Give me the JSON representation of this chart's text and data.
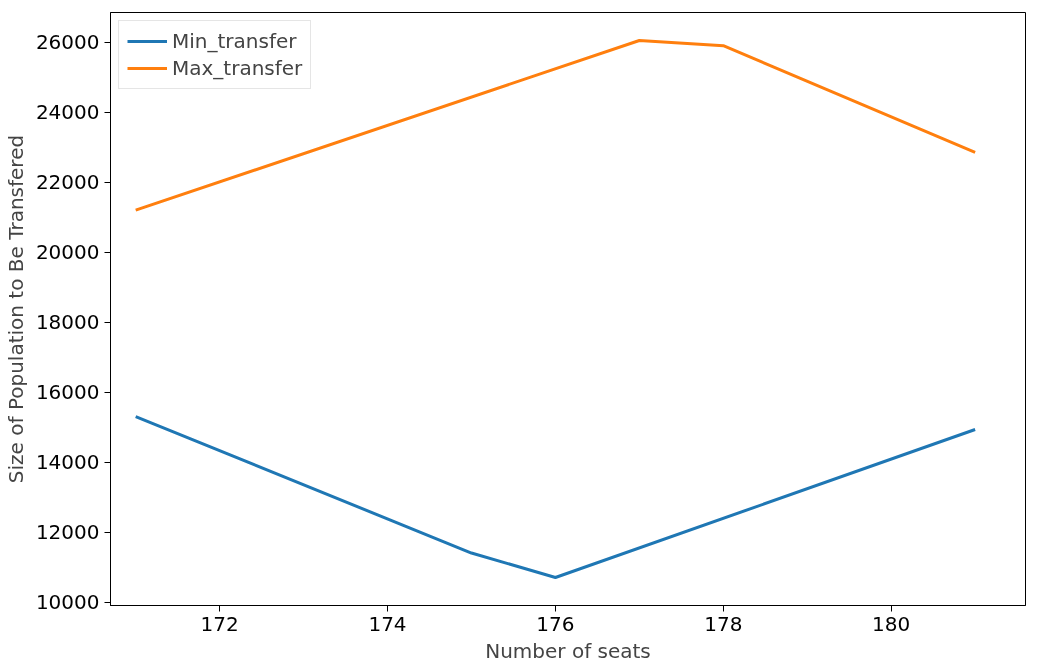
{
  "chart_data": {
    "type": "line",
    "xlabel": "Number of seats",
    "ylabel": "Size of Population to Be Transfered",
    "series": [
      {
        "name": "Min_transfer",
        "color": "#1f77b4",
        "x": [
          171,
          175,
          176,
          181
        ],
        "values": [
          15300,
          11400,
          10700,
          14930
        ]
      },
      {
        "name": "Max_transfer",
        "color": "#ff7f0e",
        "x": [
          171,
          177,
          178,
          181
        ],
        "values": [
          21200,
          26050,
          25900,
          22850
        ]
      }
    ],
    "xlim": [
      170.7,
      181.6
    ],
    "ylim": [
      9900,
      26850
    ],
    "xticks": [
      172,
      174,
      176,
      178,
      180
    ],
    "yticks": [
      10000,
      12000,
      14000,
      16000,
      18000,
      20000,
      22000,
      24000,
      26000
    ],
    "grid": false,
    "legend": "top left",
    "line_style": "solid"
  }
}
